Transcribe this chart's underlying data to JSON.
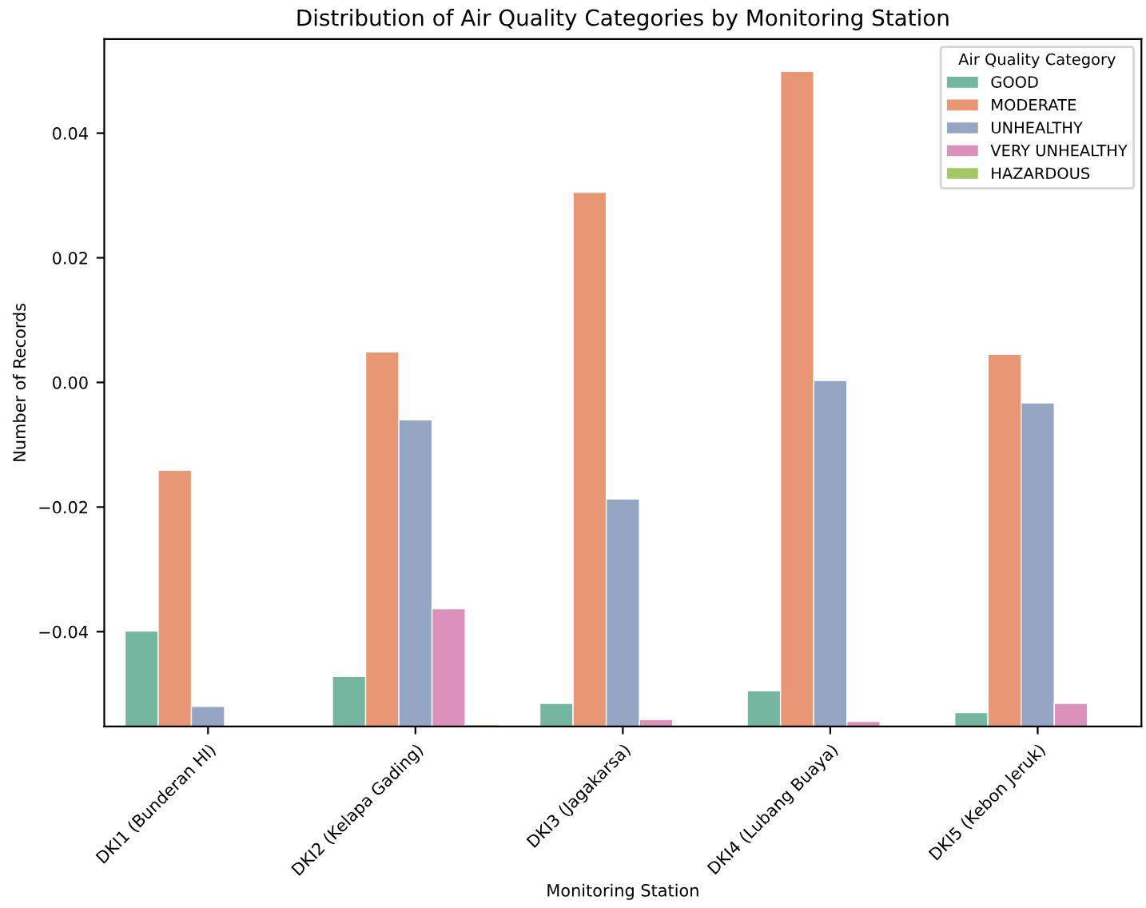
{
  "chart_data": {
    "type": "bar",
    "title": "Distribution of Air Quality Categories by Monitoring Station",
    "xlabel": "Monitoring Station",
    "ylabel": "Number of Records",
    "legend_title": "Air Quality Category",
    "categories": [
      "DKI1 (Bunderan HI)",
      "DKI2 (Kelapa Gading)",
      "DKI3 (Jagakarsa)",
      "DKI4 (Lubang Buaya)",
      "DKI5 (Kebon Jeruk)"
    ],
    "series": [
      {
        "name": "GOOD",
        "color": "#73b7a1",
        "base": [
          -0.0552,
          -0.0552,
          -0.0552,
          -0.0552,
          -0.0552
        ],
        "values": [
          0.0153,
          0.008,
          0.0037,
          0.0057,
          0.0022
        ]
      },
      {
        "name": "MODERATE",
        "color": "#e99674",
        "base": [
          -0.0552,
          -0.0552,
          -0.0552,
          -0.0552,
          -0.0552
        ],
        "values": [
          0.0411,
          0.0601,
          0.0857,
          0.1051,
          0.0597
        ]
      },
      {
        "name": "UNHEALTHY",
        "color": "#95a5c4",
        "base": [
          -0.0552,
          -0.0552,
          -0.0552,
          -0.0552,
          -0.0552
        ],
        "values": [
          0.0032,
          0.0492,
          0.0365,
          0.0555,
          0.0519
        ]
      },
      {
        "name": "VERY UNHEALTHY",
        "color": "#dc91bd",
        "base": [
          null,
          -0.0552,
          -0.0552,
          -0.0552,
          -0.0552
        ],
        "values": [
          null,
          0.0189,
          0.0011,
          0.0008,
          0.0037
        ]
      },
      {
        "name": "HAZARDOUS",
        "color": "#a1c865",
        "base": [
          null,
          -0.0552,
          null,
          null,
          null
        ],
        "values": [
          null,
          0.0003,
          null,
          null,
          null
        ]
      }
    ],
    "ylim": [
      -0.0552,
      0.0551
    ],
    "yticks": [
      {
        "value": -0.04,
        "label": "−0.04"
      },
      {
        "value": -0.02,
        "label": "−0.02"
      },
      {
        "value": 0,
        "label": "0.00"
      },
      {
        "value": 0.02,
        "label": "0.02"
      },
      {
        "value": 0.04,
        "label": "0.04"
      }
    ],
    "legend": "top right",
    "grid": false
  }
}
